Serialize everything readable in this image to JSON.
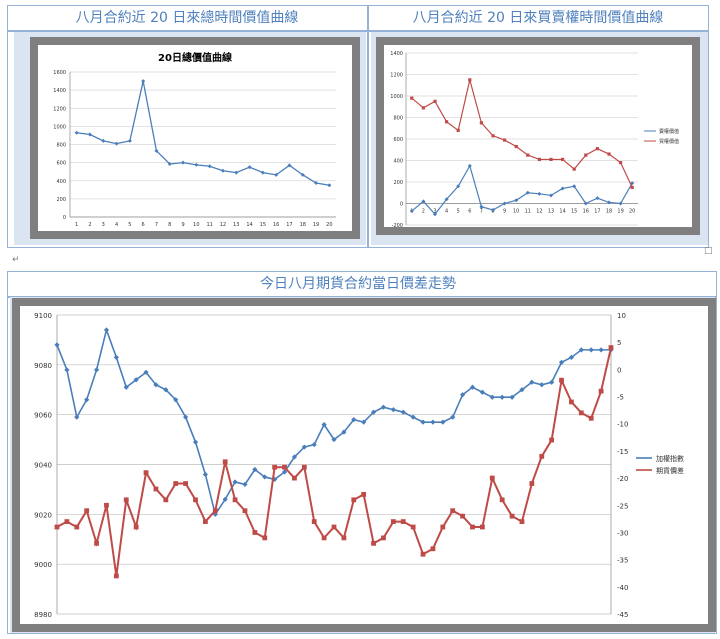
{
  "headers": {
    "top_left": "八月合約近 20 日來總時間價值曲線",
    "top_right": "八月合約近 20 日來買賣權時間價值曲線",
    "bottom": "今日八月期貨合約當日價差走勢"
  },
  "colors": {
    "blue": "#4a7ebb",
    "red": "#be4b48",
    "frame": "#7f7f7f",
    "panel": "#dbe5f1",
    "header_text": "#4f81bd"
  },
  "chart_data": [
    {
      "type": "line",
      "title": "20日總價值曲線",
      "x": [
        1,
        2,
        3,
        4,
        5,
        6,
        7,
        8,
        9,
        10,
        11,
        12,
        13,
        14,
        15,
        16,
        17,
        18,
        19,
        20
      ],
      "ylim": [
        0,
        1600
      ],
      "yticks": [
        0,
        200,
        400,
        600,
        800,
        1000,
        1200,
        1400,
        1600
      ],
      "series": [
        {
          "values": [
            930,
            910,
            840,
            810,
            840,
            1500,
            730,
            585,
            600,
            575,
            560,
            510,
            490,
            550,
            490,
            465,
            570,
            465,
            375,
            350
          ]
        }
      ]
    },
    {
      "type": "line",
      "x": [
        1,
        2,
        3,
        4,
        5,
        6,
        7,
        8,
        9,
        10,
        11,
        12,
        13,
        14,
        15,
        16,
        17,
        18,
        19,
        20
      ],
      "ylim": [
        -200,
        1400
      ],
      "yticks": [
        -200,
        0,
        200,
        400,
        600,
        800,
        1000,
        1200,
        1400
      ],
      "legend": "right",
      "series": [
        {
          "name": "賣權價值",
          "values": [
            -70,
            20,
            -100,
            40,
            160,
            350,
            -30,
            -60,
            0,
            30,
            100,
            90,
            75,
            140,
            160,
            0,
            50,
            10,
            0,
            190
          ]
        },
        {
          "name": "買權價值",
          "values": [
            980,
            890,
            950,
            760,
            680,
            1150,
            750,
            630,
            590,
            530,
            450,
            410,
            410,
            410,
            320,
            450,
            510,
            460,
            380,
            150
          ]
        }
      ]
    },
    {
      "type": "line",
      "ylim_left": [
        8980,
        9100
      ],
      "yticks_left": [
        8980,
        9000,
        9020,
        9040,
        9060,
        9080,
        9100
      ],
      "ylim_right": [
        -45,
        10
      ],
      "yticks_right": [
        -45,
        -40,
        -35,
        -30,
        -25,
        -20,
        -15,
        -10,
        -5,
        0,
        5,
        10
      ],
      "legend": "right",
      "series": [
        {
          "name": "加權指數",
          "axis": "left",
          "values": [
            9088,
            9078,
            9059,
            9066,
            9078,
            9094,
            9083,
            9071,
            9074,
            9077,
            9072,
            9070,
            9066,
            9059,
            9049,
            9036,
            9020,
            9026,
            9033,
            9032,
            9038,
            9035,
            9034,
            9037,
            9043,
            9047,
            9048,
            9056,
            9050,
            9053,
            9058,
            9057,
            9061,
            9063,
            9062,
            9061,
            9059,
            9057,
            9057,
            9057,
            9059,
            9068,
            9071,
            9069,
            9067,
            9067,
            9067,
            9070,
            9073,
            9072,
            9073,
            9081,
            9083,
            9086,
            9086,
            9086,
            9086
          ]
        },
        {
          "name": "期貨價差",
          "axis": "right",
          "values": [
            -29,
            -28,
            -29,
            -26,
            -32,
            -25,
            -38,
            -24,
            -29,
            -19,
            -22,
            -24,
            -21,
            -21,
            -24,
            -28,
            -26,
            -17,
            -24,
            -26,
            -30,
            -31,
            -18,
            -18,
            -20,
            -18,
            -28,
            -31,
            -29,
            -31,
            -24,
            -23,
            -32,
            -31,
            -28,
            -28,
            -29,
            -34,
            -33,
            -29,
            -26,
            -27,
            -29,
            -29,
            -20,
            -24,
            -27,
            -28,
            -21,
            -16,
            -13,
            -2,
            -6,
            -8,
            -9,
            -4,
            4
          ]
        }
      ]
    }
  ]
}
